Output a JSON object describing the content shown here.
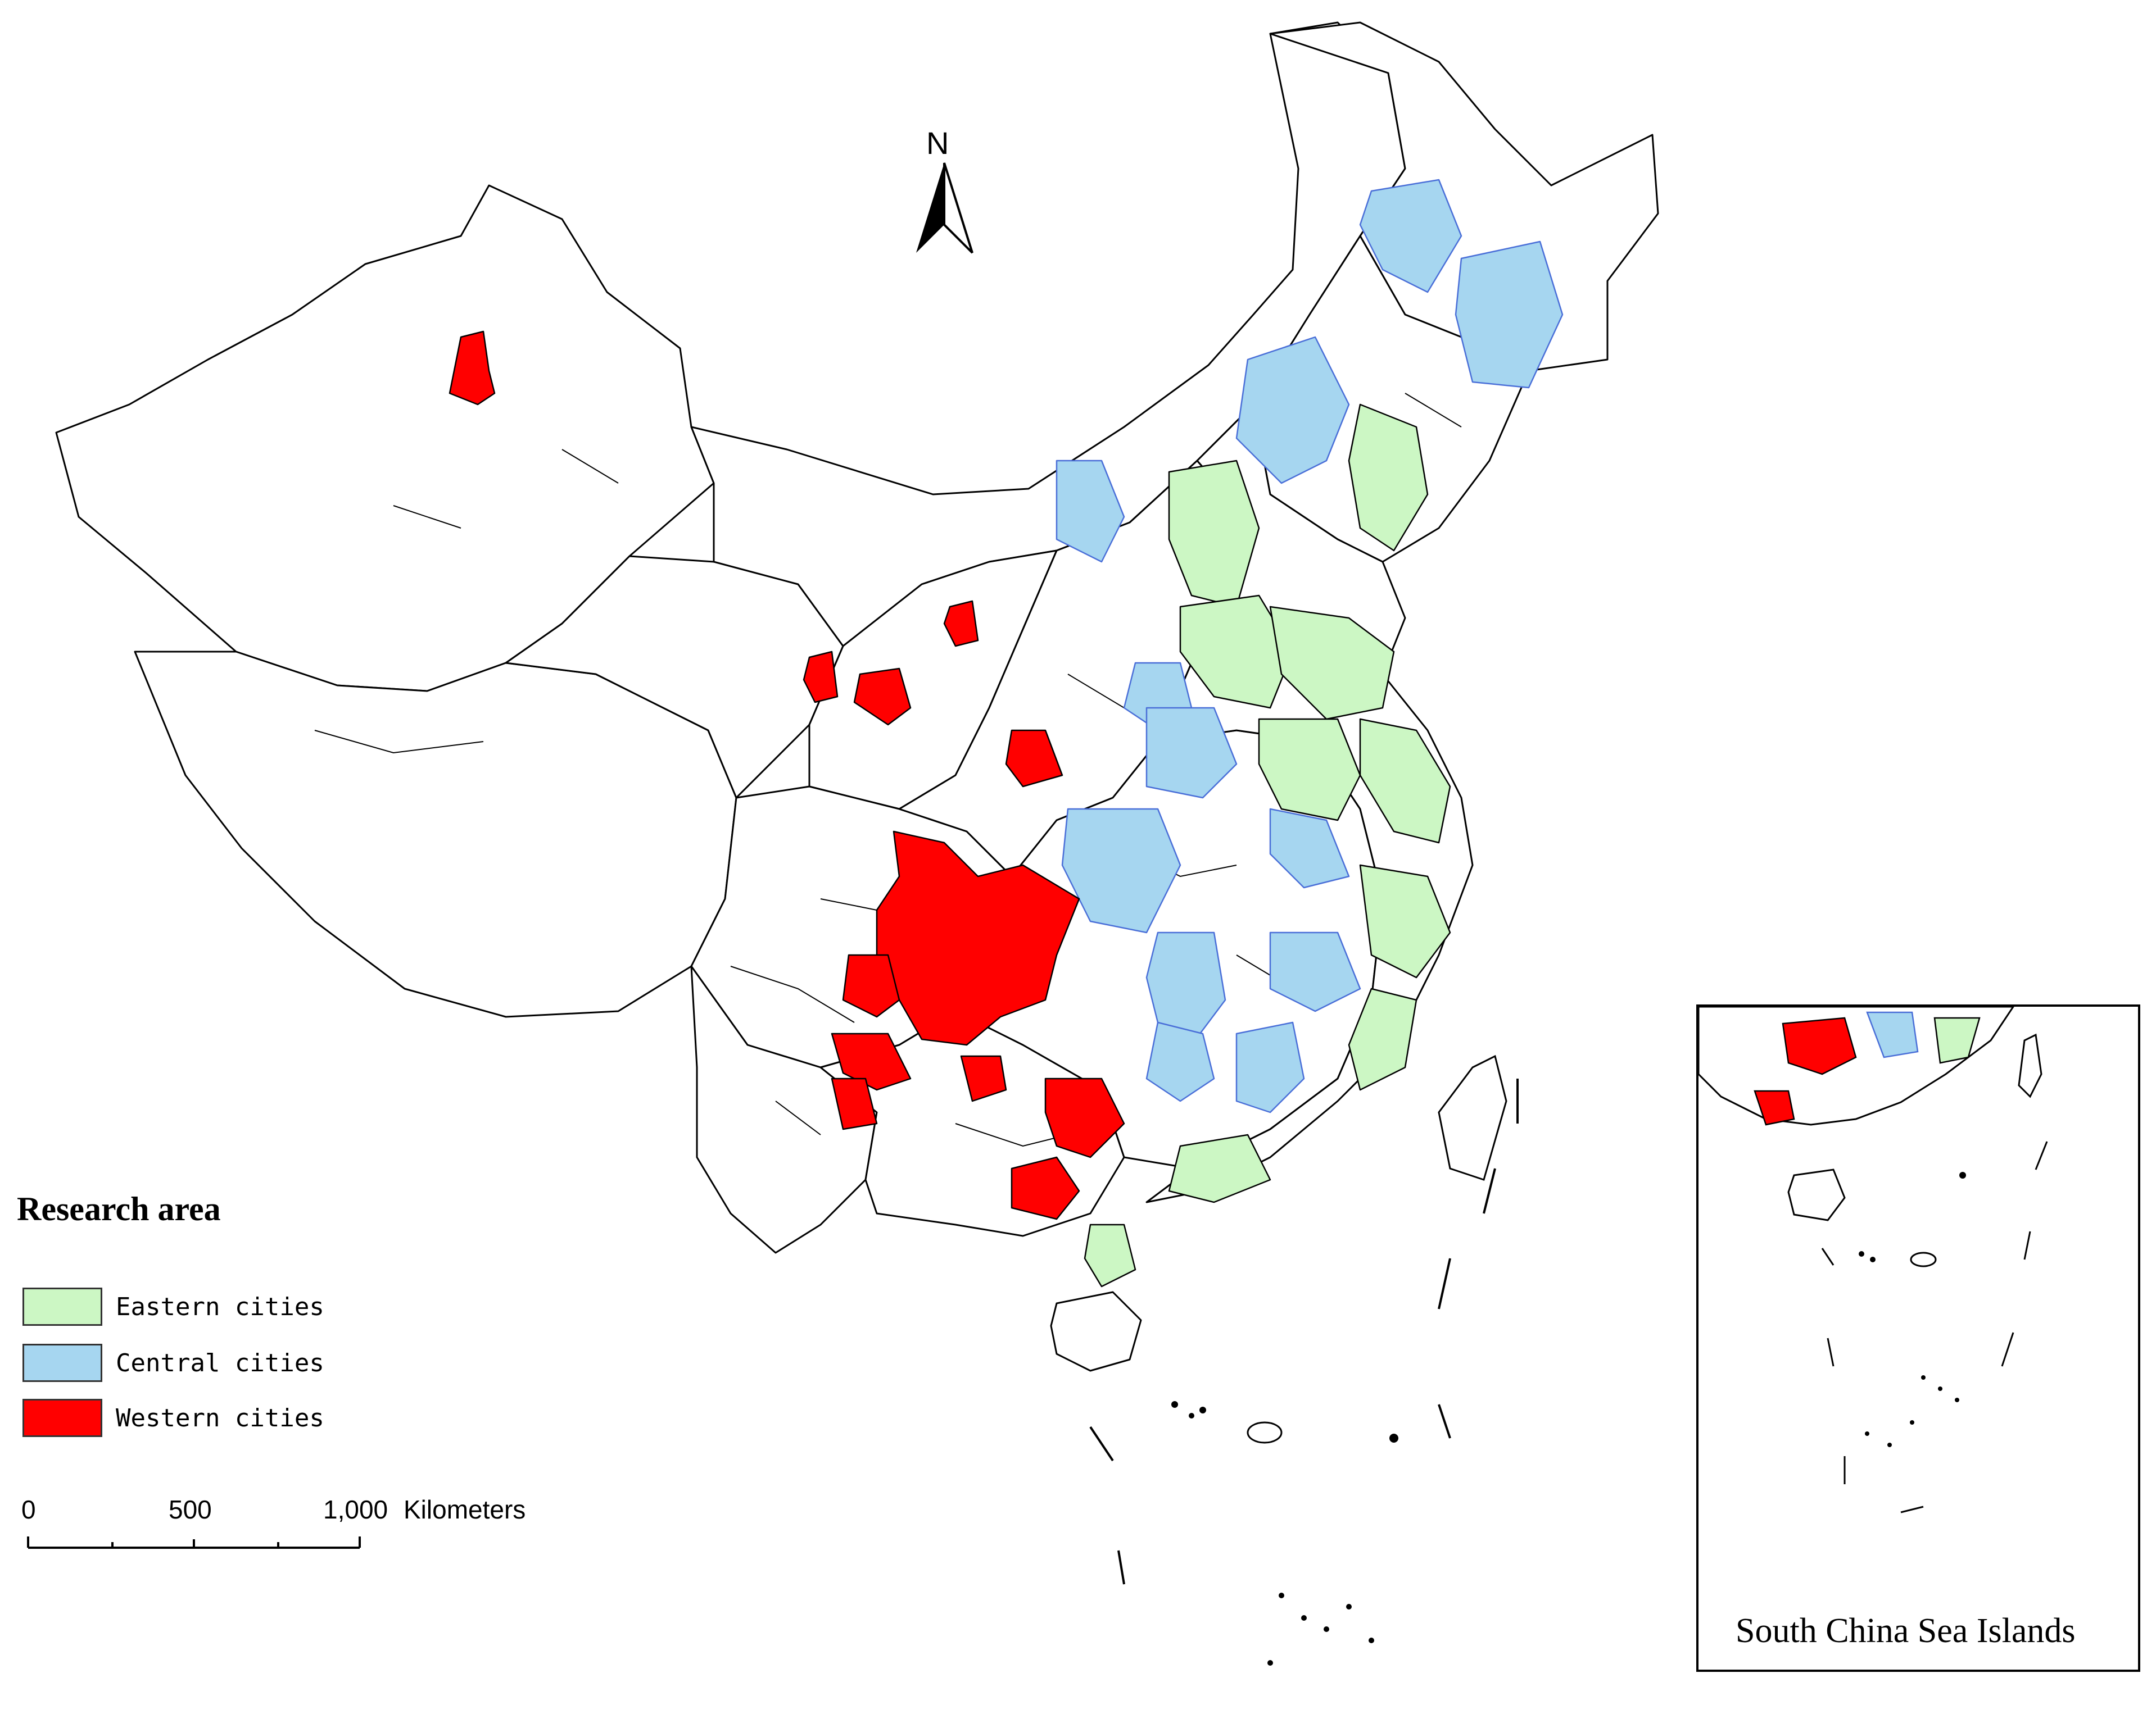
{
  "north_arrow": {
    "label": "N"
  },
  "legend": {
    "title": "Research area",
    "items": [
      {
        "label": "Eastern cities",
        "color": "#ccf7c4"
      },
      {
        "label": "Central cities",
        "color": "#a6d6f0"
      },
      {
        "label": "Western cities",
        "color": "#ff0000"
      }
    ]
  },
  "scale_bar": {
    "ticks": [
      "0",
      "500",
      "1,000"
    ],
    "unit": "Kilometers"
  },
  "inset": {
    "caption": "South China Sea Islands"
  }
}
